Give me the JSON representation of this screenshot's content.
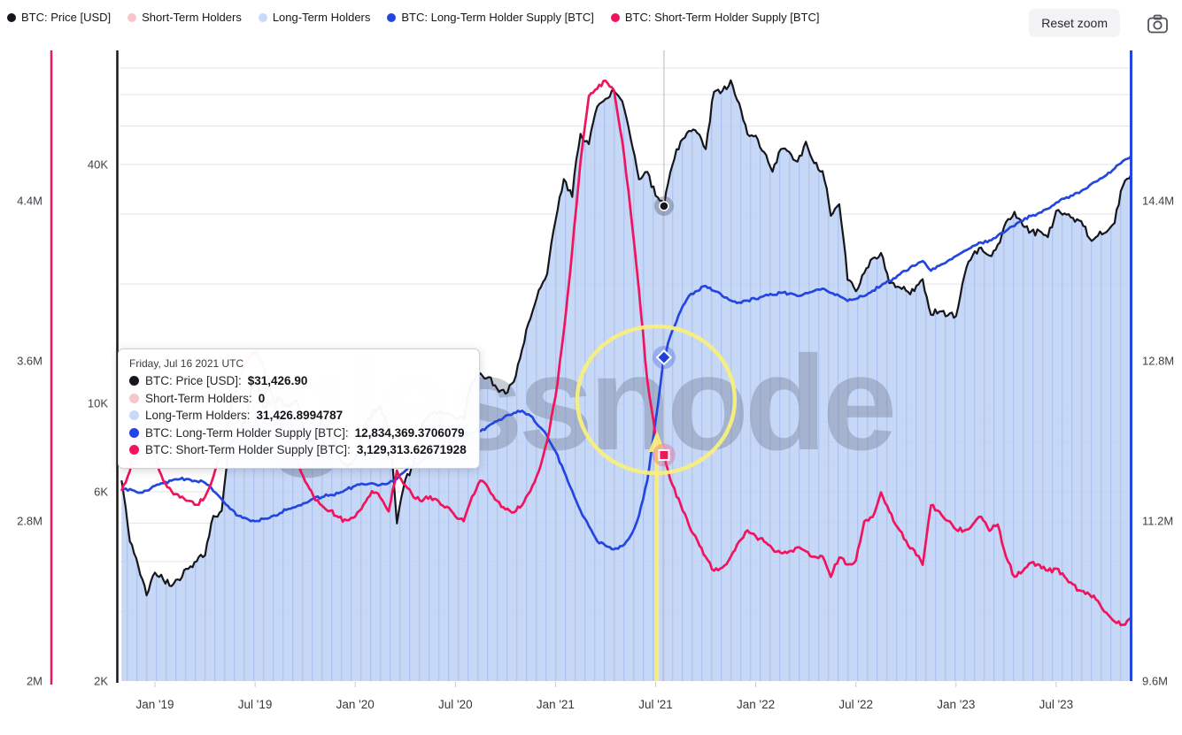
{
  "header": {
    "legend": [
      {
        "label": "BTC: Price [USD]",
        "color": "#16161d"
      },
      {
        "label": "Short-Term Holders",
        "color": "#f6c6cb"
      },
      {
        "label": "Long-Term Holders",
        "color": "#c9daf8"
      },
      {
        "label": "BTC: Long-Term Holder Supply [BTC]",
        "color": "#2446e0"
      },
      {
        "label": "BTC: Short-Term Holder Supply [BTC]",
        "color": "#f0145e"
      }
    ],
    "reset_zoom_label": "Reset zoom"
  },
  "watermark": "glassnode",
  "tooltip": {
    "title": "Friday, Jul 16 2021 UTC",
    "rows": [
      {
        "label": "BTC: Price [USD]",
        "value": "$31,426.90",
        "color": "#16161d"
      },
      {
        "label": "Short-Term Holders",
        "value": "0",
        "color": "#f6c6cb"
      },
      {
        "label": "Long-Term Holders",
        "value": "31,426.8994787",
        "color": "#c9daf8"
      },
      {
        "label": "BTC: Long-Term Holder Supply [BTC]",
        "value": "12,834,369.3706079",
        "color": "#2446e0"
      },
      {
        "label": "BTC: Short-Term Holder Supply [BTC]",
        "value": "3,129,313.62671928",
        "color": "#f0145e"
      }
    ]
  },
  "chart_data": {
    "type": "line",
    "x_start": "2018-11-01",
    "points_per_month": 2,
    "x_axis": {
      "tick_labels": [
        "Jan '19",
        "Jul '19",
        "Jan '20",
        "Jul '20",
        "Jan '21",
        "Jul '21",
        "Jan '22",
        "Jul '22",
        "Jan '23",
        "Jul '23"
      ]
    },
    "y_axes": {
      "price_usd": {
        "scale": "log",
        "unit": "USD",
        "min": 2000,
        "max": 77500,
        "side": "left-inner",
        "axis_color": "#16161d",
        "tick_labels": [
          "40K",
          "10K",
          "6K",
          "2K"
        ],
        "tick_values": [
          40000,
          10000,
          6000,
          2000
        ],
        "gridline_values": [
          3000,
          4000,
          5000,
          6000,
          7000,
          8000,
          9000,
          10000,
          20000,
          30000,
          40000,
          50000,
          60000,
          70000
        ]
      },
      "sth_supply": {
        "scale": "linear",
        "unit": "million BTC",
        "min": 2.0,
        "max": 5.151,
        "side": "left-outer",
        "axis_color": "#f0145e",
        "tick_labels": [
          "4.4M",
          "3.6M",
          "2.8M",
          "2M"
        ],
        "tick_values": [
          4.4,
          3.6,
          2.8,
          2.0
        ]
      },
      "lth_supply": {
        "scale": "linear",
        "unit": "million BTC",
        "min": 9.6,
        "max": 15.902,
        "side": "right",
        "axis_color": "#2446e0",
        "tick_labels": [
          "14.4M",
          "12.8M",
          "11.2M",
          "9.6M"
        ],
        "tick_values": [
          14.4,
          12.8,
          11.2,
          9.6
        ]
      }
    },
    "selected_point": {
      "date": "2021-07-16",
      "index": 65,
      "values": {
        "price_usd": 31426.9,
        "short_term_holders": 0,
        "long_term_holders": 31426.8994787,
        "lth_supply_btc": 12834369.3706079,
        "sth_supply_btc": 3129313.62671928
      }
    },
    "annotations": [
      {
        "shape": "ellipse",
        "color": "#f8ef7e",
        "around": "supply crossover Jul 2021"
      },
      {
        "shape": "arrow-up",
        "color": "#f8ef7e",
        "at": "2021-07-16"
      }
    ],
    "series": [
      {
        "name": "BTC: Price [USD]",
        "axis": "price_usd",
        "color": "#16161d",
        "style": "line",
        "values": [
          6400,
          4500,
          3900,
          3300,
          3750,
          3600,
          3450,
          3600,
          3850,
          4000,
          4150,
          5200,
          5350,
          7900,
          8550,
          9300,
          11800,
          9800,
          10100,
          10300,
          9800,
          10200,
          8300,
          8000,
          9200,
          8500,
          7400,
          6900,
          7200,
          8700,
          9350,
          9900,
          8550,
          5000,
          6400,
          7100,
          8850,
          9400,
          9550,
          9450,
          9150,
          9150,
          11300,
          11900,
          11650,
          10950,
          10600,
          11350,
          13750,
          16300,
          19400,
          21300,
          29000,
          36800,
          33100,
          47900,
          45100,
          55600,
          58700,
          61400,
          57700,
          46450,
          36700,
          38100,
          33500,
          31400,
          39900,
          45900,
          48800,
          47750,
          43800,
          60900,
          61300,
          65000,
          57200,
          47700,
          47300,
          43100,
          38500,
          43900,
          43200,
          40500,
          45500,
          40400,
          38500,
          29850,
          31800,
          20400,
          19250,
          21200,
          23300,
          23900,
          20100,
          19700,
          19300,
          19100,
          20500,
          16700,
          17100,
          16650,
          16600,
          21100,
          23700,
          24600,
          23500,
          25000,
          28500,
          30300,
          28100,
          27000,
          27200,
          26300,
          30500,
          30100,
          29200,
          28700,
          25900,
          26550,
          27000,
          28500,
          35400,
          37800
        ]
      },
      {
        "name": "Short-Term Holders",
        "axis": "price_usd",
        "color": "#f6c6cb",
        "style": "none",
        "values_constant": 0
      },
      {
        "name": "Long-Term Holders",
        "axis": "price_usd",
        "color": "#c9daf8",
        "style": "area",
        "values_ref": "BTC: Price [USD]"
      },
      {
        "name": "BTC: Long-Term Holder Supply [BTC]",
        "axis": "lth_supply",
        "color": "#2446e0",
        "style": "line",
        "values": [
          11.5,
          11.52,
          11.48,
          11.5,
          11.55,
          11.58,
          11.6,
          11.62,
          11.62,
          11.6,
          11.58,
          11.5,
          11.42,
          11.32,
          11.25,
          11.22,
          11.2,
          11.22,
          11.25,
          11.28,
          11.32,
          11.35,
          11.38,
          11.42,
          11.44,
          11.46,
          11.48,
          11.52,
          11.55,
          11.57,
          11.58,
          11.56,
          11.58,
          11.62,
          11.7,
          11.75,
          11.8,
          11.85,
          11.9,
          11.95,
          12.0,
          12.05,
          12.08,
          12.1,
          12.15,
          12.2,
          12.25,
          12.28,
          12.3,
          12.25,
          12.15,
          12.05,
          11.9,
          11.7,
          11.5,
          11.3,
          11.15,
          11.0,
          10.95,
          10.92,
          10.95,
          11.05,
          11.25,
          11.6,
          12.2,
          12.834,
          13.1,
          13.3,
          13.45,
          13.5,
          13.55,
          13.5,
          13.45,
          13.4,
          13.38,
          13.4,
          13.42,
          13.45,
          13.46,
          13.48,
          13.47,
          13.45,
          13.48,
          13.5,
          13.52,
          13.48,
          13.45,
          13.4,
          13.42,
          13.45,
          13.5,
          13.55,
          13.6,
          13.65,
          13.7,
          13.75,
          13.8,
          13.7,
          13.75,
          13.8,
          13.85,
          13.9,
          13.95,
          13.98,
          14.0,
          14.05,
          14.1,
          14.15,
          14.2,
          14.25,
          14.28,
          14.32,
          14.38,
          14.42,
          14.45,
          14.5,
          14.55,
          14.6,
          14.65,
          14.72,
          14.8,
          14.85
        ]
      },
      {
        "name": "BTC: Short-Term Holder Supply [BTC]",
        "axis": "sth_supply",
        "color": "#f0145e",
        "style": "line",
        "values": [
          2.95,
          3.05,
          3.25,
          3.2,
          3.12,
          3.0,
          2.95,
          2.92,
          2.9,
          2.88,
          2.92,
          3.02,
          3.18,
          3.35,
          3.5,
          3.6,
          3.65,
          3.58,
          3.43,
          3.3,
          3.2,
          3.1,
          3.0,
          2.92,
          2.88,
          2.85,
          2.82,
          2.8,
          2.82,
          2.88,
          2.95,
          2.92,
          2.85,
          3.05,
          2.98,
          2.92,
          2.9,
          2.92,
          2.9,
          2.87,
          2.82,
          2.8,
          2.92,
          3.0,
          2.96,
          2.9,
          2.86,
          2.84,
          2.88,
          2.95,
          3.05,
          3.2,
          3.42,
          3.75,
          4.15,
          4.6,
          4.92,
          4.96,
          5.0,
          4.95,
          4.7,
          4.35,
          3.95,
          3.5,
          3.22,
          3.129,
          2.98,
          2.88,
          2.78,
          2.7,
          2.62,
          2.55,
          2.57,
          2.62,
          2.7,
          2.75,
          2.72,
          2.7,
          2.66,
          2.64,
          2.65,
          2.67,
          2.65,
          2.62,
          2.62,
          2.52,
          2.62,
          2.58,
          2.6,
          2.8,
          2.82,
          2.94,
          2.85,
          2.77,
          2.7,
          2.65,
          2.58,
          2.88,
          2.85,
          2.8,
          2.76,
          2.75,
          2.78,
          2.82,
          2.75,
          2.78,
          2.62,
          2.52,
          2.55,
          2.59,
          2.58,
          2.55,
          2.56,
          2.52,
          2.48,
          2.45,
          2.43,
          2.4,
          2.34,
          2.3,
          2.28,
          2.32
        ]
      }
    ]
  }
}
